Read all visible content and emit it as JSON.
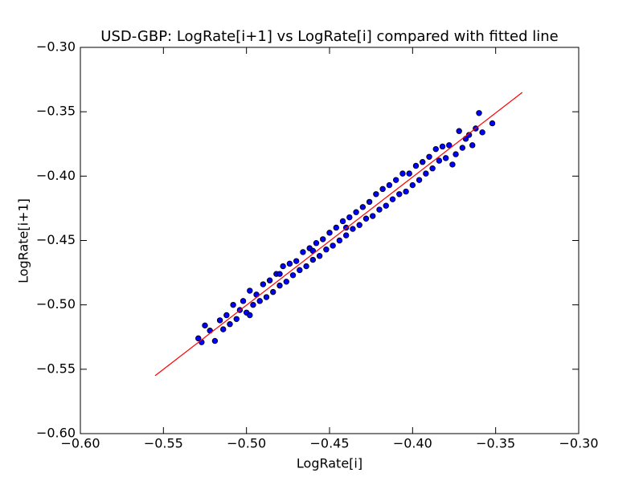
{
  "chart_data": {
    "type": "scatter",
    "title": "USD-GBP: LogRate[i+1] vs LogRate[i] compared with fitted line",
    "x_label": "LogRate[i]",
    "y_label": "LogRate[i+1]",
    "xlim": [
      -0.6,
      -0.3
    ],
    "ylim": [
      -0.6,
      -0.3
    ],
    "xticks": [
      {
        "value": -0.6,
        "label": "−0.60"
      },
      {
        "value": -0.55,
        "label": "−0.55"
      },
      {
        "value": -0.5,
        "label": "−0.50"
      },
      {
        "value": -0.45,
        "label": "−0.45"
      },
      {
        "value": -0.4,
        "label": "−0.40"
      },
      {
        "value": -0.35,
        "label": "−0.35"
      },
      {
        "value": -0.3,
        "label": "−0.30"
      }
    ],
    "yticks": [
      {
        "value": -0.6,
        "label": "−0.60"
      },
      {
        "value": -0.55,
        "label": "−0.55"
      },
      {
        "value": -0.5,
        "label": "−0.50"
      },
      {
        "value": -0.45,
        "label": "−0.45"
      },
      {
        "value": -0.4,
        "label": "−0.40"
      },
      {
        "value": -0.35,
        "label": "−0.35"
      },
      {
        "value": -0.3,
        "label": "−0.30"
      }
    ],
    "series": [
      {
        "color": "#0000ff",
        "x": [
          -0.529,
          -0.527,
          -0.525,
          -0.519,
          -0.516,
          -0.514,
          -0.512,
          -0.51,
          -0.508,
          -0.506,
          -0.504,
          -0.502,
          -0.5,
          -0.498,
          -0.496,
          -0.494,
          -0.492,
          -0.49,
          -0.488,
          -0.486,
          -0.484,
          -0.482,
          -0.48,
          -0.478,
          -0.476,
          -0.474,
          -0.472,
          -0.47,
          -0.468,
          -0.466,
          -0.464,
          -0.462,
          -0.46,
          -0.458,
          -0.456,
          -0.454,
          -0.452,
          -0.45,
          -0.448,
          -0.446,
          -0.444,
          -0.442,
          -0.44,
          -0.438,
          -0.436,
          -0.434,
          -0.432,
          -0.43,
          -0.428,
          -0.426,
          -0.424,
          -0.422,
          -0.42,
          -0.418,
          -0.416,
          -0.414,
          -0.412,
          -0.41,
          -0.408,
          -0.406,
          -0.404,
          -0.402,
          -0.4,
          -0.398,
          -0.396,
          -0.394,
          -0.392,
          -0.39,
          -0.388,
          -0.386,
          -0.384,
          -0.382,
          -0.38,
          -0.378,
          -0.376,
          -0.374,
          -0.372,
          -0.37,
          -0.368,
          -0.366,
          -0.364,
          -0.362,
          -0.36,
          -0.358,
          -0.352,
          -0.522,
          -0.498,
          -0.48,
          -0.46,
          -0.44
        ],
        "values": [
          -0.526,
          -0.529,
          -0.516,
          -0.528,
          -0.512,
          -0.519,
          -0.508,
          -0.515,
          -0.5,
          -0.511,
          -0.504,
          -0.497,
          -0.506,
          -0.489,
          -0.5,
          -0.492,
          -0.497,
          -0.484,
          -0.494,
          -0.481,
          -0.49,
          -0.476,
          -0.485,
          -0.47,
          -0.482,
          -0.468,
          -0.477,
          -0.466,
          -0.473,
          -0.459,
          -0.47,
          -0.456,
          -0.465,
          -0.452,
          -0.462,
          -0.449,
          -0.457,
          -0.444,
          -0.454,
          -0.44,
          -0.45,
          -0.435,
          -0.446,
          -0.432,
          -0.441,
          -0.428,
          -0.438,
          -0.424,
          -0.433,
          -0.42,
          -0.431,
          -0.414,
          -0.426,
          -0.41,
          -0.423,
          -0.407,
          -0.418,
          -0.403,
          -0.414,
          -0.398,
          -0.412,
          -0.398,
          -0.407,
          -0.392,
          -0.403,
          -0.389,
          -0.398,
          -0.385,
          -0.394,
          -0.379,
          -0.388,
          -0.377,
          -0.386,
          -0.376,
          -0.391,
          -0.383,
          -0.365,
          -0.378,
          -0.371,
          -0.368,
          -0.376,
          -0.363,
          -0.351,
          -0.366,
          -0.359,
          -0.52,
          -0.508,
          -0.476,
          -0.458,
          -0.44
        ]
      }
    ],
    "fit_line": {
      "color": "#ff0000",
      "x": [
        -0.555,
        -0.334
      ],
      "values": [
        -0.555,
        -0.335
      ]
    }
  }
}
